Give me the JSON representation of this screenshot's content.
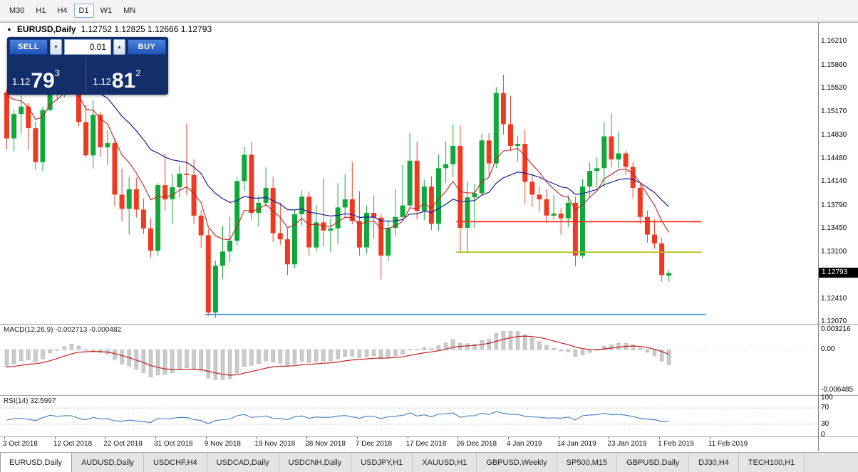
{
  "toolbar": {
    "timeframes": [
      "M30",
      "H1",
      "H4",
      "D1",
      "W1",
      "MN"
    ],
    "active_timeframe": "D1"
  },
  "chart_header": {
    "symbol": "EURUSD,Daily",
    "ohlc": "1.12752 1.12825 1.12666 1.12793"
  },
  "trade_panel": {
    "sell_label": "SELL",
    "buy_label": "BUY",
    "volume": "0.01",
    "sell_price": {
      "big": "1.12",
      "pips": "79",
      "frac": "3"
    },
    "buy_price": {
      "big": "1.12",
      "pips": "81",
      "frac": "2"
    }
  },
  "price_badge": "1.12793",
  "tabs": {
    "items": [
      "EURUSD,Daily",
      "AUDUSD,Daily",
      "USDCHF,H4",
      "USDCAD,Daily",
      "USDCNH,Daily",
      "USDJPY,H1",
      "XAUUSD,H1",
      "GBPUSD,Weekly",
      "SP500,M15",
      "GBPUSD,Daily",
      "DJ30,H4",
      "TECH100,H1"
    ],
    "active_index": 0
  },
  "chart_data": {
    "type": "candlestick",
    "title": "EURUSD,Daily",
    "y_range": [
      1.1204,
      1.1632
    ],
    "y_axis_ticks": [
      "1.16210",
      "1.15860",
      "1.15520",
      "1.15170",
      "1.14830",
      "1.14480",
      "1.14140",
      "1.13790",
      "1.13450",
      "1.13100",
      "1.12410",
      "1.12070"
    ],
    "x_labels": [
      "3 Oct 2018",
      "12 Oct 2018",
      "22 Oct 2018",
      "31 Oct 2018",
      "9 Nov 2018",
      "19 Nov 2018",
      "28 Nov 2018",
      "7 Dec 2018",
      "17 Dec 2018",
      "26 Dec 2018",
      "4 Jan 2019",
      "14 Jan 2019",
      "23 Jan 2019",
      "1 Feb 2019",
      "11 Feb 2019"
    ],
    "x_label_interval": 7,
    "colors": {
      "up": "#10a73b",
      "down": "#ef3a22",
      "background": "#ffffff"
    },
    "candles": [
      [
        1.1546,
        1.1551,
        1.1462,
        1.1478
      ],
      [
        1.1478,
        1.152,
        1.1459,
        1.1514
      ],
      [
        1.1514,
        1.1549,
        1.1485,
        1.1525
      ],
      [
        1.1525,
        1.153,
        1.1461,
        1.1493
      ],
      [
        1.1493,
        1.1503,
        1.1432,
        1.1443
      ],
      [
        1.1443,
        1.1525,
        1.143,
        1.152
      ],
      [
        1.152,
        1.1599,
        1.1518,
        1.1593
      ],
      [
        1.1593,
        1.1611,
        1.1535,
        1.1561
      ],
      [
        1.1561,
        1.1607,
        1.1539,
        1.158
      ],
      [
        1.158,
        1.16,
        1.156,
        1.1577
      ],
      [
        1.1577,
        1.1581,
        1.1495,
        1.1502
      ],
      [
        1.1502,
        1.1527,
        1.1449,
        1.1453
      ],
      [
        1.1453,
        1.1535,
        1.1433,
        1.1513
      ],
      [
        1.1513,
        1.1517,
        1.1451,
        1.1465
      ],
      [
        1.1465,
        1.149,
        1.1439,
        1.1471
      ],
      [
        1.1471,
        1.1478,
        1.1378,
        1.1395
      ],
      [
        1.1395,
        1.1433,
        1.1356,
        1.1374
      ],
      [
        1.1374,
        1.1421,
        1.1336,
        1.1403
      ],
      [
        1.1403,
        1.142,
        1.1361,
        1.1373
      ],
      [
        1.1373,
        1.1389,
        1.1337,
        1.1345
      ],
      [
        1.1345,
        1.136,
        1.1302,
        1.1312
      ],
      [
        1.1312,
        1.1412,
        1.1305,
        1.1409
      ],
      [
        1.1409,
        1.1456,
        1.1371,
        1.1388
      ],
      [
        1.1388,
        1.1425,
        1.1352,
        1.1406
      ],
      [
        1.1406,
        1.1438,
        1.1391,
        1.1426
      ],
      [
        1.1426,
        1.15,
        1.1394,
        1.1424
      ],
      [
        1.1424,
        1.1447,
        1.1352,
        1.1364
      ],
      [
        1.1364,
        1.1372,
        1.1316,
        1.1335
      ],
      [
        1.1335,
        1.1344,
        1.1216,
        1.1221
      ],
      [
        1.1221,
        1.1297,
        1.1213,
        1.129
      ],
      [
        1.129,
        1.1349,
        1.127,
        1.1311
      ],
      [
        1.1311,
        1.1362,
        1.1295,
        1.1327
      ],
      [
        1.1327,
        1.1421,
        1.132,
        1.1415
      ],
      [
        1.1415,
        1.1466,
        1.14,
        1.1454
      ],
      [
        1.1454,
        1.1472,
        1.1358,
        1.1368
      ],
      [
        1.1368,
        1.1394,
        1.1348,
        1.1383
      ],
      [
        1.1383,
        1.1435,
        1.1377,
        1.1405
      ],
      [
        1.1405,
        1.1421,
        1.1325,
        1.1338
      ],
      [
        1.1338,
        1.1383,
        1.1321,
        1.1329
      ],
      [
        1.1329,
        1.1345,
        1.1276,
        1.1292
      ],
      [
        1.1292,
        1.1372,
        1.1286,
        1.1366
      ],
      [
        1.1366,
        1.1401,
        1.1349,
        1.1392
      ],
      [
        1.1392,
        1.14,
        1.1305,
        1.1317
      ],
      [
        1.1317,
        1.138,
        1.1311,
        1.1354
      ],
      [
        1.1354,
        1.1419,
        1.1318,
        1.1342
      ],
      [
        1.1342,
        1.136,
        1.131,
        1.1345
      ],
      [
        1.1345,
        1.1412,
        1.1322,
        1.1376
      ],
      [
        1.1376,
        1.1425,
        1.136,
        1.1388
      ],
      [
        1.1388,
        1.1443,
        1.1351,
        1.1356
      ],
      [
        1.1356,
        1.14,
        1.1305,
        1.1317
      ],
      [
        1.1317,
        1.1379,
        1.1308,
        1.1368
      ],
      [
        1.1368,
        1.1394,
        1.133,
        1.1361
      ],
      [
        1.1361,
        1.1366,
        1.127,
        1.1305
      ],
      [
        1.1305,
        1.1358,
        1.1297,
        1.1346
      ],
      [
        1.1346,
        1.1403,
        1.1334,
        1.1362
      ],
      [
        1.1362,
        1.1439,
        1.136,
        1.1379
      ],
      [
        1.1379,
        1.1486,
        1.1375,
        1.1445
      ],
      [
        1.1445,
        1.1473,
        1.1358,
        1.1371
      ],
      [
        1.1371,
        1.1417,
        1.1357,
        1.1407
      ],
      [
        1.1407,
        1.1422,
        1.1343,
        1.1352
      ],
      [
        1.1352,
        1.1454,
        1.1342,
        1.1434
      ],
      [
        1.1434,
        1.1474,
        1.1412,
        1.144
      ],
      [
        1.144,
        1.1498,
        1.1421,
        1.1467
      ],
      [
        1.1467,
        1.1497,
        1.131,
        1.1346
      ],
      [
        1.1346,
        1.1413,
        1.1309,
        1.1391
      ],
      [
        1.1391,
        1.1411,
        1.1345,
        1.1397
      ],
      [
        1.1397,
        1.1485,
        1.1394,
        1.1475
      ],
      [
        1.1475,
        1.1486,
        1.1422,
        1.1441
      ],
      [
        1.1441,
        1.1554,
        1.1434,
        1.1545
      ],
      [
        1.1545,
        1.1572,
        1.1484,
        1.1499
      ],
      [
        1.1499,
        1.1541,
        1.1459,
        1.1467
      ],
      [
        1.1467,
        1.1482,
        1.1444,
        1.147
      ],
      [
        1.147,
        1.1491,
        1.1381,
        1.1414
      ],
      [
        1.1414,
        1.1426,
        1.1377,
        1.1395
      ],
      [
        1.1395,
        1.1407,
        1.1369,
        1.1388
      ],
      [
        1.1388,
        1.1403,
        1.1353,
        1.1364
      ],
      [
        1.1364,
        1.1394,
        1.1358,
        1.1367
      ],
      [
        1.1367,
        1.1375,
        1.1336,
        1.136
      ],
      [
        1.136,
        1.1394,
        1.1347,
        1.1383
      ],
      [
        1.1383,
        1.1392,
        1.1289,
        1.1305
      ],
      [
        1.1305,
        1.1418,
        1.1301,
        1.1407
      ],
      [
        1.1407,
        1.1443,
        1.139,
        1.143
      ],
      [
        1.143,
        1.145,
        1.1405,
        1.1434
      ],
      [
        1.1434,
        1.1502,
        1.1406,
        1.1481
      ],
      [
        1.1481,
        1.1515,
        1.1435,
        1.1447
      ],
      [
        1.1447,
        1.1489,
        1.1434,
        1.1456
      ],
      [
        1.1456,
        1.146,
        1.1424,
        1.1436
      ],
      [
        1.1436,
        1.1443,
        1.139,
        1.1405
      ],
      [
        1.1405,
        1.141,
        1.1352,
        1.1362
      ],
      [
        1.1362,
        1.1371,
        1.1324,
        1.1336
      ],
      [
        1.1336,
        1.1358,
        1.1315,
        1.1323
      ],
      [
        1.1323,
        1.1331,
        1.1267,
        1.1276
      ],
      [
        1.12752,
        1.12825,
        1.12666,
        1.12793
      ]
    ],
    "overlays": {
      "ma_fast": {
        "period": 8,
        "seed": 1.156,
        "color": "#c22020"
      },
      "ma_slow": {
        "period": 21,
        "seed": 1.1628,
        "color": "#1c1c96"
      },
      "hlines": [
        {
          "value": 1.1355,
          "color": "#ff2a1a",
          "from_index": 62.8,
          "to_index": 96.9
        },
        {
          "value": 1.131,
          "color": "#b5be00",
          "from_index": 62.8,
          "to_index": 96.9
        },
        {
          "value": 1.1218,
          "color": "#3a96dd",
          "from_index": 27.9,
          "to_index": 97.5
        }
      ],
      "current_price": 1.12793
    },
    "indicators": [
      {
        "name": "MACD",
        "label": "MACD(12,26,9) -0.002713 -0.000482",
        "axis": [
          "0.003216",
          "0.00",
          "-0.006485"
        ],
        "range": [
          -0.00715,
          0.004
        ],
        "seed_offset": 0.003,
        "signal_color": "#c22020",
        "histogram_color": "#cbcbcb"
      },
      {
        "name": "RSI",
        "label": "RSI(14) 32.5997",
        "axis": [
          "100",
          "70",
          "30",
          "0"
        ],
        "levels": [
          70,
          30
        ],
        "color": "#3f7cc4",
        "seed_gain": 0.0019,
        "seed_loss": 0.0028
      }
    ]
  }
}
